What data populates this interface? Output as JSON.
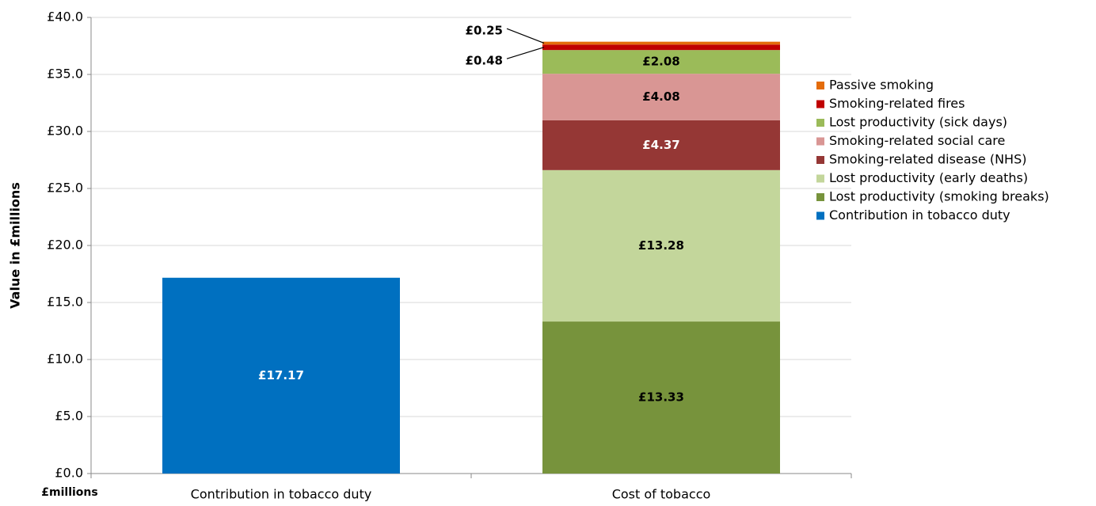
{
  "chart_data": {
    "type": "stacked_bar",
    "y_label": "Value in £millions",
    "unit_label": "£millions",
    "categories": [
      "Contribution in tobacco duty",
      "Cost of tobacco"
    ],
    "series": [
      {
        "name": "Contribution in tobacco duty",
        "color": "#0070c0",
        "values": [
          17.17,
          null
        ],
        "value_labels": [
          "£17.17",
          null
        ]
      },
      {
        "name": "Lost productivity (smoking breaks)",
        "color": "#77933c",
        "values": [
          null,
          13.33
        ],
        "value_labels": [
          null,
          "£13.33"
        ]
      },
      {
        "name": "Lost productivity (early deaths)",
        "color": "#c3d69b",
        "values": [
          null,
          13.28
        ],
        "value_labels": [
          null,
          "£13.28"
        ]
      },
      {
        "name": "Smoking-related disease (NHS)",
        "color": "#953735",
        "values": [
          null,
          4.37
        ],
        "value_labels": [
          null,
          "£4.37"
        ]
      },
      {
        "name": "Smoking-related social care",
        "color": "#d99694",
        "values": [
          null,
          4.08
        ],
        "value_labels": [
          null,
          "£4.08"
        ]
      },
      {
        "name": "Lost productivity (sick days)",
        "color": "#9bbb59",
        "values": [
          null,
          2.08
        ],
        "value_labels": [
          null,
          "£2.08"
        ]
      },
      {
        "name": "Smoking-related fires",
        "color": "#c00000",
        "values": [
          null,
          0.48
        ],
        "value_labels": [
          null,
          "£0.48"
        ]
      },
      {
        "name": "Passive smoking",
        "color": "#e46c0a",
        "values": [
          null,
          0.25
        ],
        "value_labels": [
          null,
          "£0.25"
        ]
      }
    ],
    "ylim": [
      0,
      40
    ],
    "yticks": [
      {
        "value": 0,
        "label": "£0.0"
      },
      {
        "value": 5,
        "label": "£5.0"
      },
      {
        "value": 10,
        "label": "£10.0"
      },
      {
        "value": 15,
        "label": "£15.0"
      },
      {
        "value": 20,
        "label": "£20.0"
      },
      {
        "value": 25,
        "label": "£25.0"
      },
      {
        "value": 30,
        "label": "£30.0"
      },
      {
        "value": 35,
        "label": "£35.0"
      },
      {
        "value": 40,
        "label": "£40.0"
      }
    ],
    "grid": true,
    "legend": "right"
  }
}
